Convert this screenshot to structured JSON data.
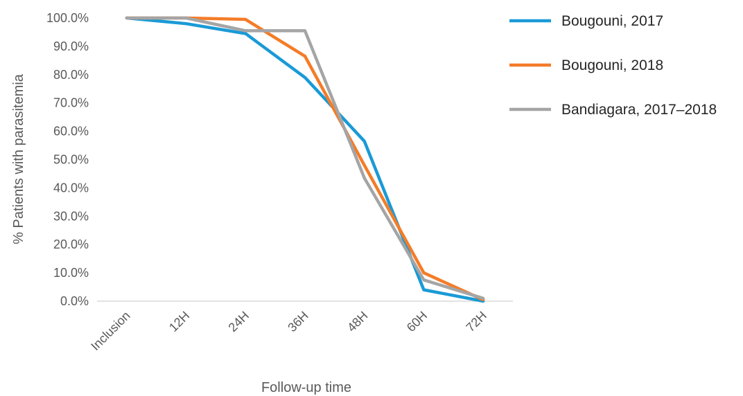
{
  "chart_data": {
    "type": "line",
    "xlabel": "Follow-up time",
    "ylabel": "% Patients with parasitemia",
    "categories": [
      "Inclusion",
      "12H",
      "24H",
      "36H",
      "48H",
      "60H",
      "72H"
    ],
    "ylim": [
      0,
      100
    ],
    "yticks": [
      "0.0%",
      "10.0%",
      "20.0%",
      "30.0%",
      "40.0%",
      "50.0%",
      "60.0%",
      "70.0%",
      "80.0%",
      "90.0%",
      "100.0%"
    ],
    "grid": false,
    "legend_position": "right",
    "series": [
      {
        "name": "Bougouni, 2017",
        "color": "#1a9ad6",
        "values": [
          100,
          98,
          94.5,
          79,
          56.5,
          4,
          0
        ]
      },
      {
        "name": "Bougouni, 2018",
        "color": "#f47c28",
        "values": [
          100,
          100,
          99.5,
          86.5,
          48,
          10,
          0.5
        ]
      },
      {
        "name": "Bandiagara, 2017–2018",
        "color": "#a5a5a5",
        "values": [
          100,
          100,
          95.5,
          95.5,
          43.5,
          7.5,
          1
        ]
      }
    ]
  }
}
